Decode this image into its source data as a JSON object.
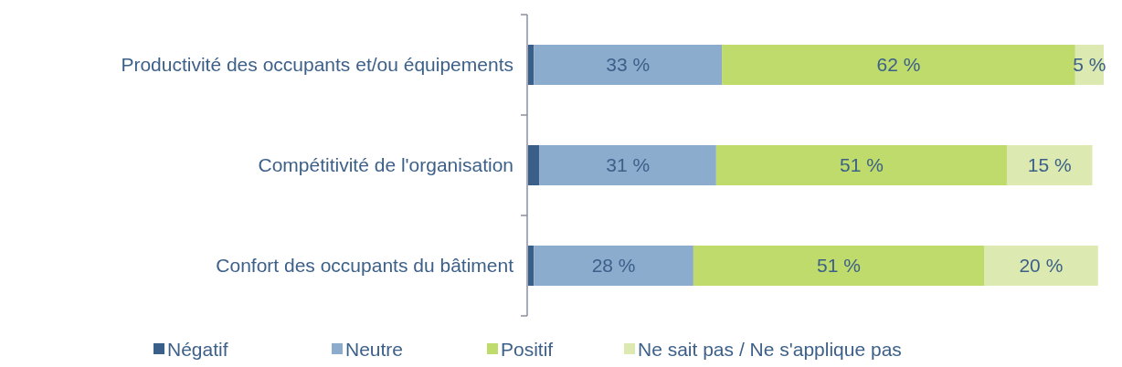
{
  "chart_data": {
    "type": "bar",
    "orientation": "horizontal",
    "stacked": true,
    "legend": "bottom",
    "categories": [
      "Productivité des occupants et/ou équipements",
      "Compétitivité de l'organisation",
      "Confort des occupants du bâtiment"
    ],
    "series": [
      {
        "name": "Négatif",
        "color": "#3a5f88",
        "values": [
          1,
          2,
          1
        ],
        "value_labels": [
          null,
          null,
          null
        ]
      },
      {
        "name": "Neutre",
        "color": "#8cacce",
        "values": [
          33,
          31,
          28
        ],
        "value_labels": [
          "33 %",
          "31 %",
          "28 %"
        ]
      },
      {
        "name": "Positif",
        "color": "#bedb6b",
        "values": [
          62,
          51,
          51
        ],
        "value_labels": [
          "62 %",
          "51 %",
          "51 %"
        ]
      },
      {
        "name": "Ne sait pas / Ne s'applique pas",
        "color": "#dce9b0",
        "values": [
          5,
          15,
          20
        ],
        "value_labels": [
          "5 %",
          "15 %",
          "20 %"
        ]
      }
    ]
  }
}
